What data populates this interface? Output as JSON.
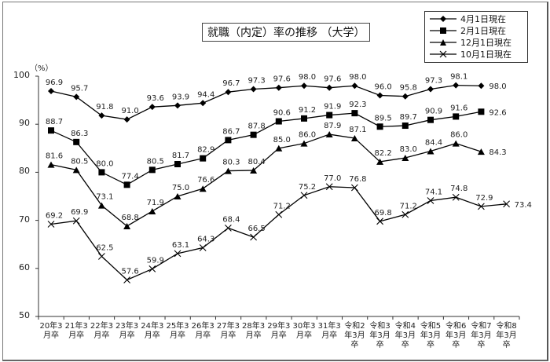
{
  "chart_data": {
    "type": "line",
    "title": "就職（内定）率の推移 （大学）",
    "xlabel": "",
    "ylabel": "（%）",
    "ylim": [
      50,
      100
    ],
    "yticks": [
      50,
      60,
      70,
      80,
      90,
      100
    ],
    "grid": false,
    "legend_position": "top-right",
    "categories": [
      "20年3月卒",
      "21年3月卒",
      "22年3月卒",
      "23年3月卒",
      "24年3月卒",
      "25年3月卒",
      "26年3月卒",
      "27年3月卒",
      "28年3月卒",
      "29年3月卒",
      "30年3月卒",
      "31年3月卒",
      "令和2年3月卒",
      "令和3年3月卒",
      "令和4年3月卒",
      "令和5年3月卒",
      "令和6年3月卒",
      "令和7年3月卒",
      "令和8年3月卒"
    ],
    "category_lines": [
      [
        "20年3",
        "月卒"
      ],
      [
        "21年3",
        "月卒"
      ],
      [
        "22年3",
        "月卒"
      ],
      [
        "23年3",
        "月卒"
      ],
      [
        "24年3",
        "月卒"
      ],
      [
        "25年3",
        "月卒"
      ],
      [
        "26年3",
        "月卒"
      ],
      [
        "27年3",
        "月卒"
      ],
      [
        "28年3",
        "月卒"
      ],
      [
        "29年3",
        "月卒"
      ],
      [
        "30年3",
        "月卒"
      ],
      [
        "31年3",
        "月卒"
      ],
      [
        "令和2",
        "年3月",
        "卒"
      ],
      [
        "令和3",
        "年3月",
        "卒"
      ],
      [
        "令和4",
        "年3月",
        "卒"
      ],
      [
        "令和5",
        "年3月",
        "卒"
      ],
      [
        "令和6",
        "年3月",
        "卒"
      ],
      [
        "令和7",
        "年3月",
        "卒"
      ],
      [
        "令和8",
        "年3月",
        "卒"
      ]
    ],
    "series": [
      {
        "name": "4月1日現在",
        "marker": "diamond",
        "values": [
          96.9,
          95.7,
          91.8,
          91.0,
          93.6,
          93.9,
          94.4,
          96.7,
          97.3,
          97.6,
          98.0,
          97.6,
          98.0,
          96.0,
          95.8,
          97.3,
          98.1,
          98.0,
          null
        ]
      },
      {
        "name": "2月1日現在",
        "marker": "square",
        "values": [
          88.7,
          86.3,
          80.0,
          77.4,
          80.5,
          81.7,
          82.9,
          86.7,
          87.8,
          90.6,
          91.2,
          91.9,
          92.3,
          89.5,
          89.7,
          90.9,
          91.6,
          92.6,
          null
        ]
      },
      {
        "name": "12月1日現在",
        "marker": "triangle",
        "values": [
          81.6,
          80.5,
          73.1,
          68.8,
          71.9,
          75.0,
          76.6,
          80.3,
          80.4,
          85.0,
          86.0,
          87.9,
          87.1,
          82.2,
          83.0,
          84.4,
          86.0,
          84.3,
          null
        ]
      },
      {
        "name": "10月1日現在",
        "marker": "cross",
        "values": [
          69.2,
          69.9,
          62.5,
          57.6,
          59.9,
          63.1,
          64.3,
          68.4,
          66.5,
          71.2,
          75.2,
          77.0,
          76.8,
          69.8,
          71.2,
          74.1,
          74.8,
          72.9,
          73.4
        ]
      }
    ]
  },
  "labels": {
    "title": "就職（内定）率の推移 （大学）",
    "unit": "（%）"
  }
}
